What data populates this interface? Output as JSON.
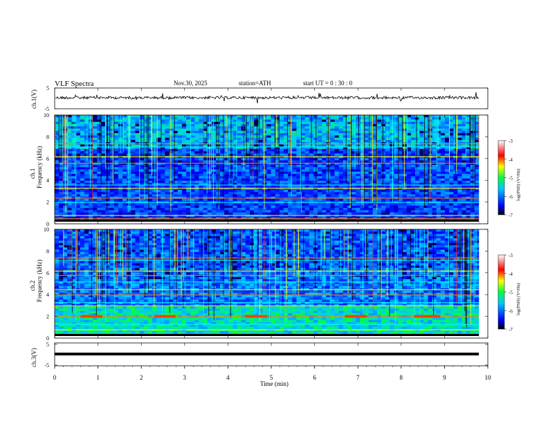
{
  "header": {
    "title": "VLF  Spectra",
    "date": "Nov.30, 2025",
    "station": "station=ATH",
    "start": "start  UT  =    0  : 30 : 0"
  },
  "colors": {
    "colormap": [
      "#000000",
      "#0000ff",
      "#00ffff",
      "#00ff00",
      "#ffff00",
      "#ff0000",
      "#ffffff"
    ]
  },
  "chart_data": {
    "type": "heatmap",
    "title": "VLF  Spectra",
    "xlabel": "Time  (min)",
    "xlim": [
      0,
      10
    ],
    "x_ticks": [
      "0",
      "1",
      "2",
      "3",
      "4",
      "5",
      "6",
      "7",
      "8",
      "9",
      "10"
    ],
    "panels": [
      {
        "kind": "waveform",
        "ylabel": "ch.1(V)",
        "ylim": [
          -5,
          5
        ],
        "y_ticks": [
          "5",
          "-5"
        ]
      },
      {
        "kind": "spectrogram",
        "ylabel_top": "ch.1",
        "ylabel": "Frequency  (kHz)",
        "ylim": [
          0,
          10
        ],
        "y_ticks": [
          "0",
          "2",
          "4",
          "6",
          "8",
          "10"
        ],
        "colorbar": {
          "label": "log(PSD) (V²/Hz)",
          "range": [
            -7,
            -3
          ],
          "ticks": [
            "-3",
            "-4",
            "-5",
            "-6",
            "-7"
          ]
        }
      },
      {
        "kind": "spectrogram",
        "ylabel_top": "ch.2",
        "ylabel": "Frequency  (kHz)",
        "ylim": [
          0,
          10
        ],
        "y_ticks": [
          "0",
          "2",
          "4",
          "6",
          "8",
          "10"
        ],
        "colorbar": {
          "label": "log(PSD) (V²/Hz)",
          "range": [
            -7,
            -3
          ],
          "ticks": [
            "-3",
            "-4",
            "-5",
            "-6",
            "-7"
          ]
        }
      },
      {
        "kind": "waveform",
        "ylabel": "ch.3(V)",
        "ylim": [
          -5,
          5
        ],
        "y_ticks": [
          "5",
          "-5"
        ]
      }
    ]
  }
}
